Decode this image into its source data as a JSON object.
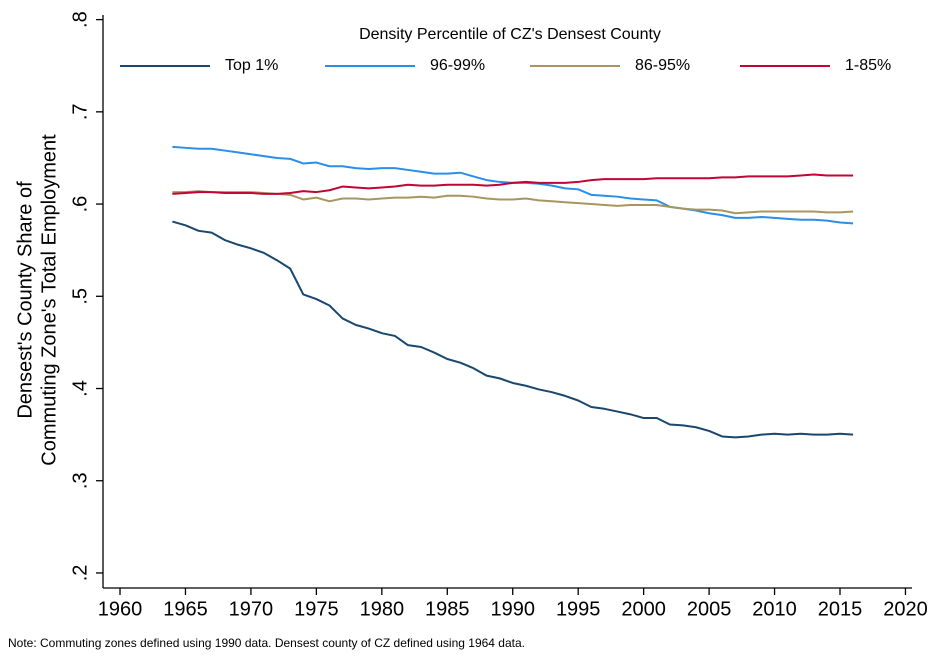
{
  "chart_data": {
    "type": "line",
    "ylabel": [
      "Densest's County Share of",
      "Commuting Zone's Total Employment"
    ],
    "legend_title": "Density Percentile of CZ's Densest County",
    "legend_position": "top",
    "grid": false,
    "note": "Note: Commuting zones defined using 1990 data. Densest county of CZ defined using 1964 data.",
    "x": [
      1964,
      1965,
      1966,
      1967,
      1968,
      1969,
      1970,
      1971,
      1972,
      1973,
      1974,
      1975,
      1976,
      1977,
      1978,
      1979,
      1980,
      1981,
      1982,
      1983,
      1984,
      1985,
      1986,
      1987,
      1988,
      1989,
      1990,
      1991,
      1992,
      1993,
      1994,
      1995,
      1996,
      1997,
      1998,
      1999,
      2000,
      2001,
      2002,
      2003,
      2004,
      2005,
      2006,
      2007,
      2008,
      2009,
      2010,
      2011,
      2012,
      2013,
      2014,
      2015,
      2016
    ],
    "xlim": [
      1958.7,
      2020.5
    ],
    "xticks": [
      1960,
      1965,
      1970,
      1975,
      1980,
      1985,
      1990,
      1995,
      2000,
      2005,
      2010,
      2015,
      2020
    ],
    "ylim": [
      0.1837,
      0.805
    ],
    "yticks": [
      {
        "value": 0.2,
        "label": ".2"
      },
      {
        "value": 0.3,
        "label": ".3"
      },
      {
        "value": 0.4,
        "label": ".4"
      },
      {
        "value": 0.5,
        "label": ".5"
      },
      {
        "value": 0.6,
        "label": ".6"
      },
      {
        "value": 0.7,
        "label": ".7"
      },
      {
        "value": 0.8,
        "label": ".8"
      }
    ],
    "series": [
      {
        "name": "Top 1%",
        "color": "#1a476f",
        "values": [
          0.581,
          0.577,
          0.571,
          0.569,
          0.561,
          0.556,
          0.552,
          0.547,
          0.539,
          0.53,
          0.502,
          0.497,
          0.49,
          0.476,
          0.469,
          0.465,
          0.46,
          0.457,
          0.447,
          0.445,
          0.439,
          0.432,
          0.428,
          0.422,
          0.414,
          0.411,
          0.406,
          0.403,
          0.399,
          0.396,
          0.392,
          0.387,
          0.38,
          0.378,
          0.375,
          0.372,
          0.368,
          0.368,
          0.361,
          0.36,
          0.358,
          0.354,
          0.348,
          0.347,
          0.348,
          0.35,
          0.351,
          0.35,
          0.351,
          0.35,
          0.35,
          0.351,
          0.35
        ]
      },
      {
        "name": "96-99%",
        "color": "#2a8fe8",
        "values": [
          0.662,
          0.661,
          0.66,
          0.66,
          0.658,
          0.656,
          0.654,
          0.652,
          0.65,
          0.649,
          0.644,
          0.645,
          0.641,
          0.641,
          0.639,
          0.638,
          0.639,
          0.639,
          0.637,
          0.635,
          0.633,
          0.633,
          0.634,
          0.63,
          0.626,
          0.624,
          0.623,
          0.623,
          0.622,
          0.62,
          0.617,
          0.616,
          0.61,
          0.609,
          0.608,
          0.606,
          0.605,
          0.604,
          0.597,
          0.595,
          0.593,
          0.59,
          0.588,
          0.585,
          0.585,
          0.586,
          0.585,
          0.584,
          0.583,
          0.583,
          0.582,
          0.58,
          0.579
        ]
      },
      {
        "name": "86-95%",
        "color": "#a8955f",
        "values": [
          0.613,
          0.613,
          0.614,
          0.613,
          0.613,
          0.613,
          0.613,
          0.612,
          0.611,
          0.61,
          0.605,
          0.607,
          0.603,
          0.606,
          0.606,
          0.605,
          0.606,
          0.607,
          0.607,
          0.608,
          0.607,
          0.609,
          0.609,
          0.608,
          0.606,
          0.605,
          0.605,
          0.606,
          0.604,
          0.603,
          0.602,
          0.601,
          0.6,
          0.599,
          0.598,
          0.599,
          0.599,
          0.599,
          0.597,
          0.595,
          0.594,
          0.594,
          0.593,
          0.59,
          0.591,
          0.592,
          0.592,
          0.592,
          0.592,
          0.592,
          0.591,
          0.591,
          0.592
        ]
      },
      {
        "name": "1-85%",
        "color": "#c10534",
        "values": [
          0.611,
          0.612,
          0.613,
          0.613,
          0.612,
          0.612,
          0.612,
          0.611,
          0.611,
          0.612,
          0.614,
          0.613,
          0.615,
          0.619,
          0.618,
          0.617,
          0.618,
          0.619,
          0.621,
          0.62,
          0.62,
          0.621,
          0.621,
          0.621,
          0.62,
          0.621,
          0.623,
          0.624,
          0.623,
          0.623,
          0.623,
          0.624,
          0.626,
          0.627,
          0.627,
          0.627,
          0.627,
          0.628,
          0.628,
          0.628,
          0.628,
          0.628,
          0.629,
          0.629,
          0.63,
          0.63,
          0.63,
          0.63,
          0.631,
          0.632,
          0.631,
          0.631,
          0.631
        ]
      }
    ]
  }
}
